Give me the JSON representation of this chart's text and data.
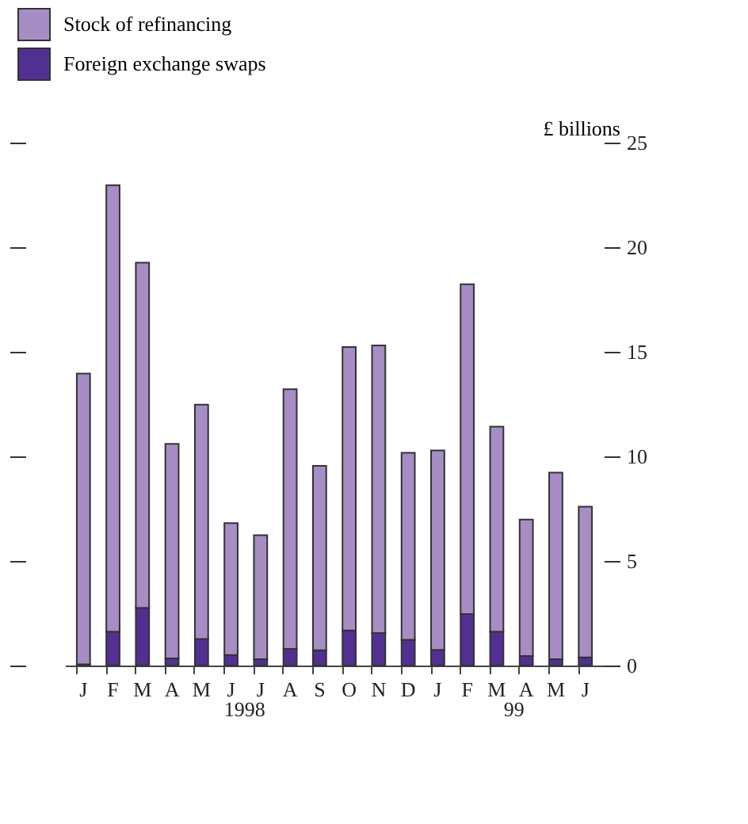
{
  "chart_data": {
    "type": "bar",
    "stacked": true,
    "ylabel": "£ billions",
    "categories": [
      "J",
      "F",
      "M",
      "A",
      "M",
      "J",
      "J",
      "A",
      "S",
      "O",
      "N",
      "D",
      "J",
      "F",
      "M",
      "A",
      "M",
      "J"
    ],
    "series": [
      {
        "name": "Foreign exchange swaps",
        "color": "#523092",
        "values": [
          0.06,
          1.62,
          2.76,
          0.34,
          1.27,
          0.5,
          0.3,
          0.8,
          0.73,
          1.68,
          1.55,
          1.23,
          0.75,
          2.46,
          1.62,
          0.45,
          0.3,
          0.39
        ]
      },
      {
        "name": "Stock of refinancing",
        "color": "#a68dc4",
        "values": [
          13.9,
          21.34,
          16.5,
          10.26,
          11.2,
          6.31,
          5.93,
          12.41,
          8.82,
          13.55,
          13.75,
          8.94,
          9.53,
          15.77,
          9.8,
          6.53,
          8.92,
          7.2
        ]
      }
    ],
    "ylim": [
      0,
      25
    ],
    "yticks": [
      0,
      5,
      10,
      15,
      20,
      25
    ],
    "grid": false,
    "legend": "top left",
    "annotations": [
      "1998",
      "99"
    ]
  }
}
